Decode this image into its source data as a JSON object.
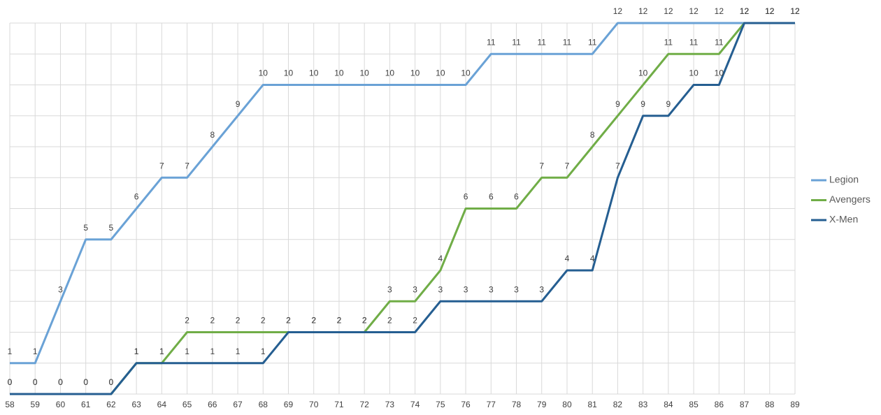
{
  "chart_data": {
    "type": "line",
    "x": [
      58,
      59,
      60,
      61,
      62,
      63,
      64,
      65,
      66,
      67,
      68,
      69,
      70,
      71,
      72,
      73,
      74,
      75,
      76,
      77,
      78,
      79,
      80,
      81,
      82,
      83,
      84,
      85,
      86,
      87,
      88,
      89
    ],
    "xlim": [
      58,
      89
    ],
    "ylim": [
      0,
      12
    ],
    "yticks": [
      0,
      1,
      2,
      3,
      4,
      5,
      6,
      7,
      8,
      9,
      10,
      11,
      12
    ],
    "grid": true,
    "legend": "right",
    "series": [
      {
        "name": "Legion",
        "color": "#6aa2d6",
        "values": [
          1,
          1,
          3,
          5,
          5,
          6,
          7,
          7,
          8,
          9,
          10,
          10,
          10,
          10,
          10,
          10,
          10,
          10,
          10,
          11,
          11,
          11,
          11,
          11,
          12,
          12,
          12,
          12,
          12,
          12,
          12,
          12
        ]
      },
      {
        "name": "Avengers",
        "color": "#70ad47",
        "values": [
          0,
          0,
          0,
          0,
          0,
          1,
          1,
          2,
          2,
          2,
          2,
          2,
          2,
          2,
          2,
          3,
          3,
          4,
          6,
          6,
          6,
          7,
          7,
          8,
          9,
          10,
          11,
          11,
          11,
          12,
          12,
          12
        ]
      },
      {
        "name": "X-Men",
        "color": "#255e91",
        "values": [
          0,
          0,
          0,
          0,
          0,
          1,
          1,
          1,
          1,
          1,
          1,
          2,
          2,
          2,
          2,
          2,
          2,
          3,
          3,
          3,
          3,
          3,
          4,
          4,
          7,
          9,
          9,
          10,
          10,
          12,
          12,
          12
        ]
      }
    ]
  }
}
